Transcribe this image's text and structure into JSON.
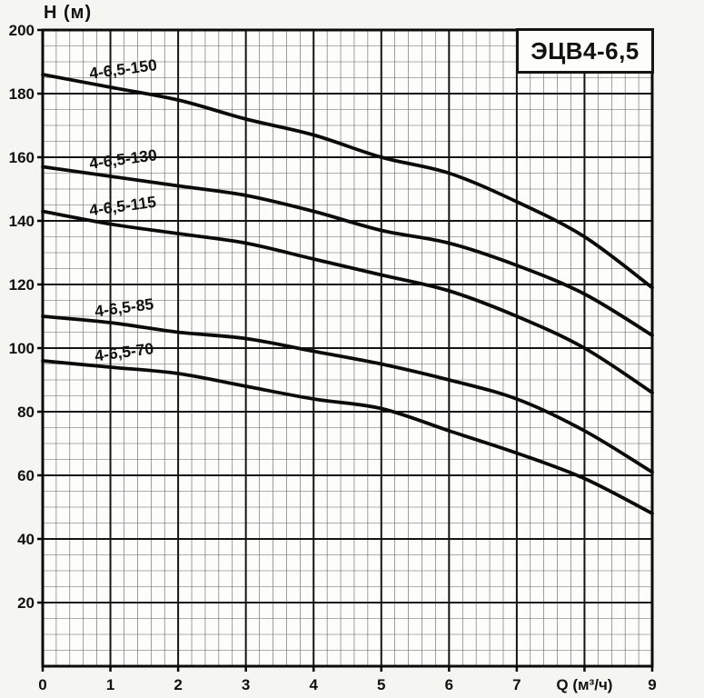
{
  "title_box": {
    "label": "ЭЦВ4-6,5"
  },
  "axes": {
    "y_title": "H (м)",
    "x_title": "Q (м³/ч)",
    "y_ticks": [
      200,
      180,
      160,
      140,
      120,
      100,
      80,
      60,
      40,
      20
    ],
    "x_tick_labels": [
      "0",
      "1",
      "2",
      "3",
      "4",
      "5",
      "6",
      "7",
      "Q (м³/ч)",
      "9"
    ],
    "x_range": [
      0,
      9
    ],
    "y_range": [
      0,
      200
    ],
    "x_major_step": 1,
    "x_minor_step": 0.2,
    "y_major_step": 20,
    "y_minor_step": 5
  },
  "chart_data": {
    "type": "line",
    "title": "ЭЦВ4-6,5",
    "xlabel": "Q (м³/ч)",
    "ylabel": "H (м)",
    "xlim": [
      0,
      9
    ],
    "ylim": [
      0,
      200
    ],
    "grid": "major+minor",
    "legend_position": "inline-curve-labels",
    "x": [
      0,
      1,
      2,
      3,
      4,
      5,
      6,
      7,
      8,
      9
    ],
    "series": [
      {
        "name": "4-6,5-150",
        "values": [
          186,
          182,
          178,
          172,
          167,
          160,
          155,
          146,
          135,
          119
        ],
        "label_anchor_q": 0.7
      },
      {
        "name": "4-6,5-130",
        "values": [
          157,
          154,
          151,
          148,
          143,
          137,
          133,
          126,
          117,
          104
        ],
        "label_anchor_q": 0.7
      },
      {
        "name": "4-6,5-115",
        "values": [
          143,
          139,
          136,
          133,
          128,
          123,
          118,
          110,
          100,
          86
        ],
        "label_anchor_q": 0.7
      },
      {
        "name": "4-6,5-85",
        "values": [
          110,
          108,
          105,
          103,
          99,
          95,
          90,
          84,
          74,
          61
        ],
        "label_anchor_q": 0.78
      },
      {
        "name": "4-6,5-70",
        "values": [
          96,
          94,
          92,
          88,
          84,
          81,
          74,
          67,
          59,
          48
        ],
        "label_anchor_q": 0.78
      }
    ]
  },
  "colors": {
    "paper": "#f5f5f2",
    "plot_background": "#fdfdfb",
    "curve": "#0b0b0b",
    "grid_major": "#141414",
    "grid_minor": "#606060",
    "border": "#0a0a0a",
    "text": "#111111"
  }
}
